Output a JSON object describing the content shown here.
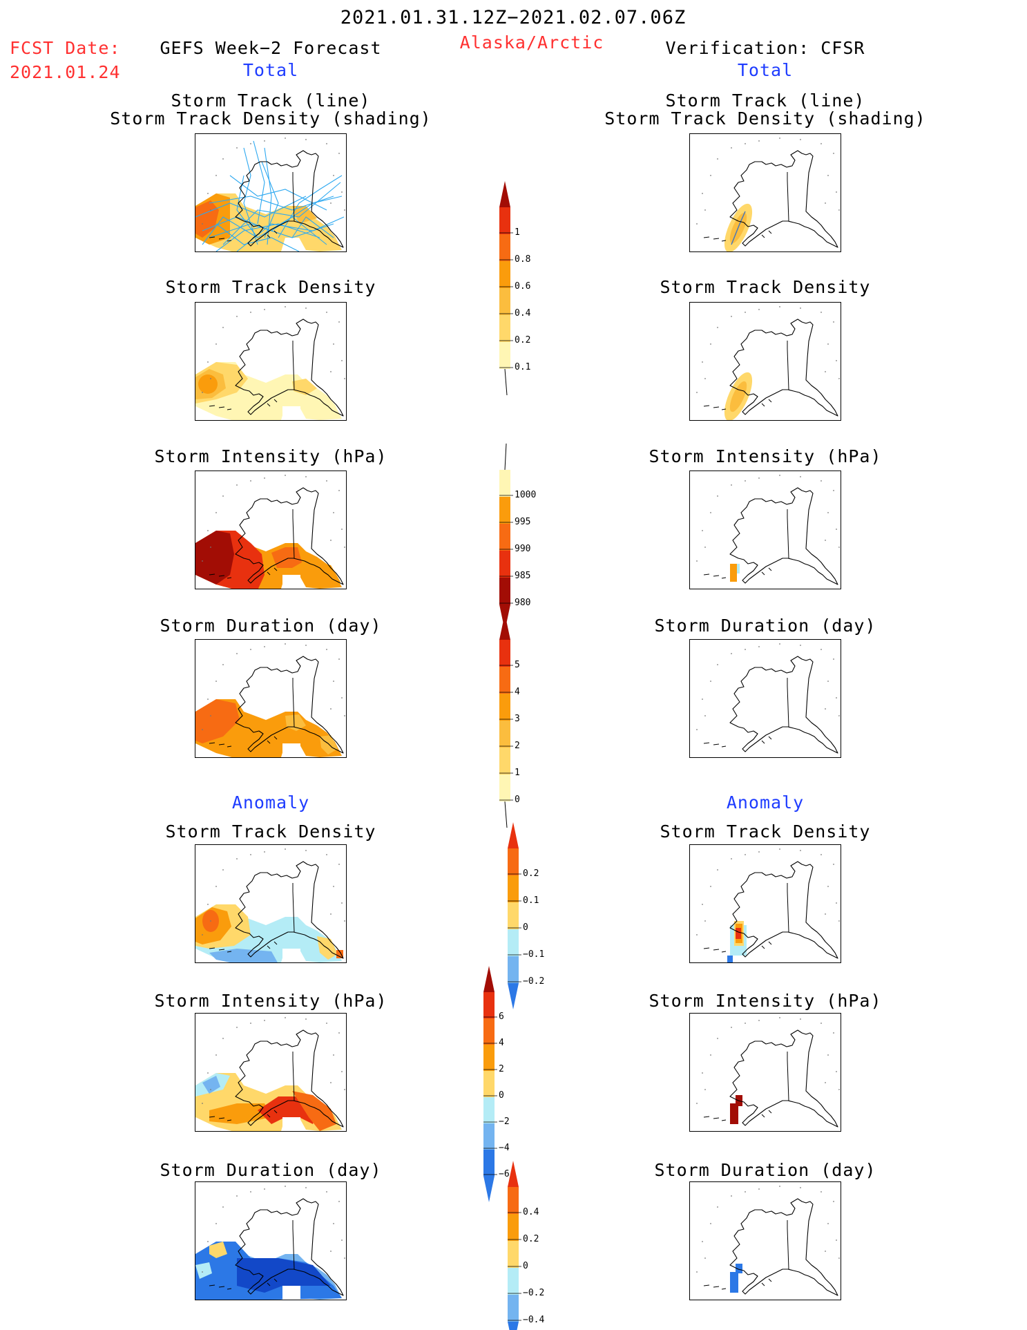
{
  "header": {
    "period": "2021.01.31.12Z−2021.02.07.06Z",
    "region": "Alaska/Arctic",
    "fcst_label": "FCST Date:",
    "fcst_date": "2021.01.24",
    "left_title": "GEFS Week−2 Forecast",
    "right_title": "Verification: CFSR",
    "total_label": "Total",
    "anomaly_label": "Anomaly"
  },
  "panel_titles": {
    "track_line": "Storm Track (line)",
    "track_shading": "Storm Track Density (shading)",
    "density": "Storm Track Density",
    "intensity": "Storm Intensity (hPa)",
    "duration": "Storm Duration (day)"
  },
  "colors": {
    "pale": "#fff6b4",
    "yellow": "#ffd86a",
    "gold": "#fbbd3e",
    "orange": "#fa9c0c",
    "dorange": "#f76b13",
    "red": "#e8310f",
    "dred": "#a20d05",
    "lblue": "#b4ecf6",
    "mblue": "#74b4f0",
    "blue": "#2c78e6",
    "dblue": "#1248c8",
    "track": "#2ca8f0"
  },
  "colorbars": {
    "density_total": {
      "labels": [
        "0.1",
        "0.2",
        "0.4",
        "0.6",
        "0.8",
        "1"
      ]
    },
    "intensity_total": {
      "labels": [
        "980",
        "985",
        "990",
        "995",
        "1000"
      ]
    },
    "duration_total": {
      "labels": [
        "0",
        "1",
        "2",
        "3",
        "4",
        "5"
      ]
    },
    "density_anom": {
      "labels": [
        "−0.2",
        "−0.1",
        "0",
        "0.1",
        "0.2"
      ]
    },
    "intensity_anom": {
      "labels": [
        "−6",
        "−4",
        "−2",
        "0",
        "2",
        "4",
        "6"
      ]
    },
    "duration_anom": {
      "labels": [
        "−0.4",
        "−0.2",
        "0",
        "0.2",
        "0.4"
      ]
    }
  }
}
